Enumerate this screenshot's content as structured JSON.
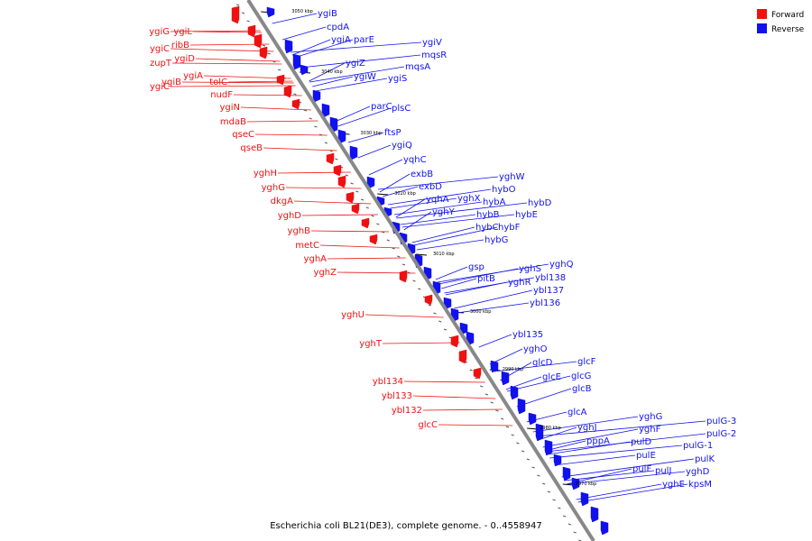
{
  "caption": "Escherichia coli BL21(DE3), complete genome. - 0..4558947",
  "legend": [
    {
      "label": "Forward",
      "color": "#ee1111"
    },
    {
      "label": "Reverse",
      "color": "#1111ee"
    }
  ],
  "strand_colors": {
    "forward": "#ee1111",
    "reverse": "#1111ee"
  },
  "backbone_color": "#888888",
  "tick_labels": [
    "3050 kbp",
    "3040 kbp",
    "3030 kbp",
    "3020 kbp",
    "3010 kbp",
    "3000 kbp",
    "2990 kbp",
    "2980 kbp",
    "2970 kbp"
  ],
  "forward_labels": [
    "ygiG",
    "ygiL",
    "ygiC",
    "ribB",
    "zupT",
    "ygiD",
    "ygiC",
    "ygiB",
    "ygiA",
    "tolC",
    "nudF",
    "ygiN",
    "mdaB",
    "qseC",
    "qseB",
    "yghH",
    "yghG",
    "dkgA",
    "yghD",
    "yghB",
    "metC",
    "yghA",
    "yghZ",
    "yghU",
    "yghT",
    "ybl134",
    "ybl133",
    "ybl132",
    "glcC"
  ],
  "reverse_labels": [
    "ygiB",
    "cpdA",
    "ygiA",
    "parE",
    "ygiV",
    "mqsR",
    "mqsA",
    "ygiZ",
    "ygiW",
    "ygiS",
    "parC",
    "plsC",
    "ftsP",
    "ygiQ",
    "yqhC",
    "exbB",
    "exbD",
    "yghW",
    "hybO",
    "yqhA",
    "yghX",
    "hybA",
    "hybD",
    "yghY",
    "hybB",
    "hybE",
    "hybC",
    "hybF",
    "hybG",
    "gsp",
    "yghS",
    "yghQ",
    "pitB",
    "yghR",
    "ybl138",
    "ybl137",
    "ybl136",
    "ybl135",
    "yghO",
    "glcD",
    "glcF",
    "glcE",
    "glcG",
    "glcB",
    "glcA",
    "yghJ",
    "yghG",
    "yghF",
    "pppA",
    "pulD",
    "pulG-3",
    "pulG-2",
    "pulE",
    "pulG-1",
    "pulF",
    "pulK",
    "pulJ",
    "yghD",
    "yghE",
    "kpsM"
  ]
}
